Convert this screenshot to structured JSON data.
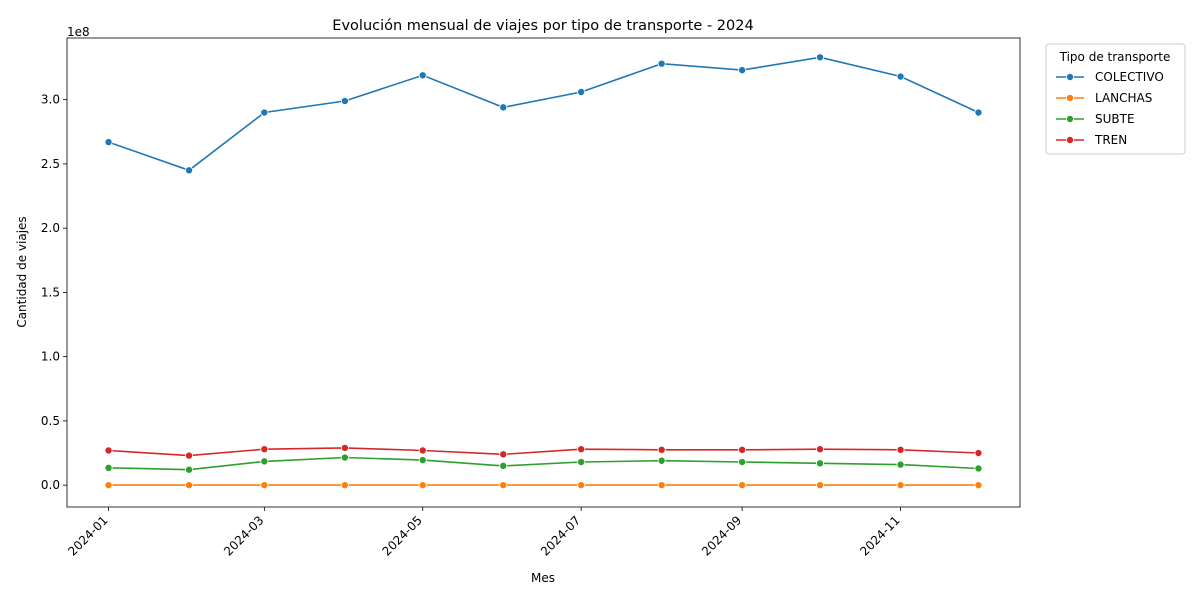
{
  "chart_data": {
    "type": "line",
    "title": "Evolución mensual de viajes por tipo de transporte - 2024",
    "xlabel": "Mes",
    "ylabel": "Cantidad de viajes",
    "y_multiplier_label": "1e8",
    "x": [
      "2024-01-01",
      "2024-02-01",
      "2024-03-01",
      "2024-04-01",
      "2024-05-01",
      "2024-06-01",
      "2024-07-01",
      "2024-08-01",
      "2024-09-01",
      "2024-10-01",
      "2024-11-01",
      "2024-12-01"
    ],
    "x_tick_labels": [
      "2024-01",
      "2024-03",
      "2024-05",
      "2024-07",
      "2024-09",
      "2024-11"
    ],
    "y_ticks": [
      0.0,
      0.5,
      1.0,
      1.5,
      2.0,
      2.5,
      3.0
    ],
    "y_tick_labels": [
      "0.0",
      "0.5",
      "1.0",
      "1.5",
      "2.0",
      "2.5",
      "3.0"
    ],
    "ylim": [
      -0.17,
      3.48
    ],
    "xlim": [
      "2023-12-16",
      "2024-12-17"
    ],
    "grid": false,
    "legend": {
      "title": "Tipo de transporte",
      "placement": "outside-top-right"
    },
    "series": [
      {
        "name": "COLECTIVO",
        "color": "#1f77b4",
        "values": [
          2.67,
          2.45,
          2.9,
          2.99,
          3.19,
          2.94,
          3.06,
          3.28,
          3.23,
          3.33,
          3.18,
          2.9
        ]
      },
      {
        "name": "LANCHAS",
        "color": "#ff7f0e",
        "values": [
          0.0001,
          0.0001,
          0.0001,
          0.0001,
          0.0001,
          0.0001,
          0.0001,
          0.0001,
          0.0001,
          0.0001,
          0.0001,
          0.0001
        ]
      },
      {
        "name": "SUBTE",
        "color": "#2ca02c",
        "values": [
          0.135,
          0.12,
          0.185,
          0.215,
          0.195,
          0.15,
          0.18,
          0.19,
          0.18,
          0.17,
          0.16,
          0.13
        ]
      },
      {
        "name": "TREN",
        "color": "#d62728",
        "values": [
          0.27,
          0.23,
          0.28,
          0.29,
          0.27,
          0.24,
          0.28,
          0.275,
          0.275,
          0.28,
          0.275,
          0.25
        ]
      }
    ]
  }
}
